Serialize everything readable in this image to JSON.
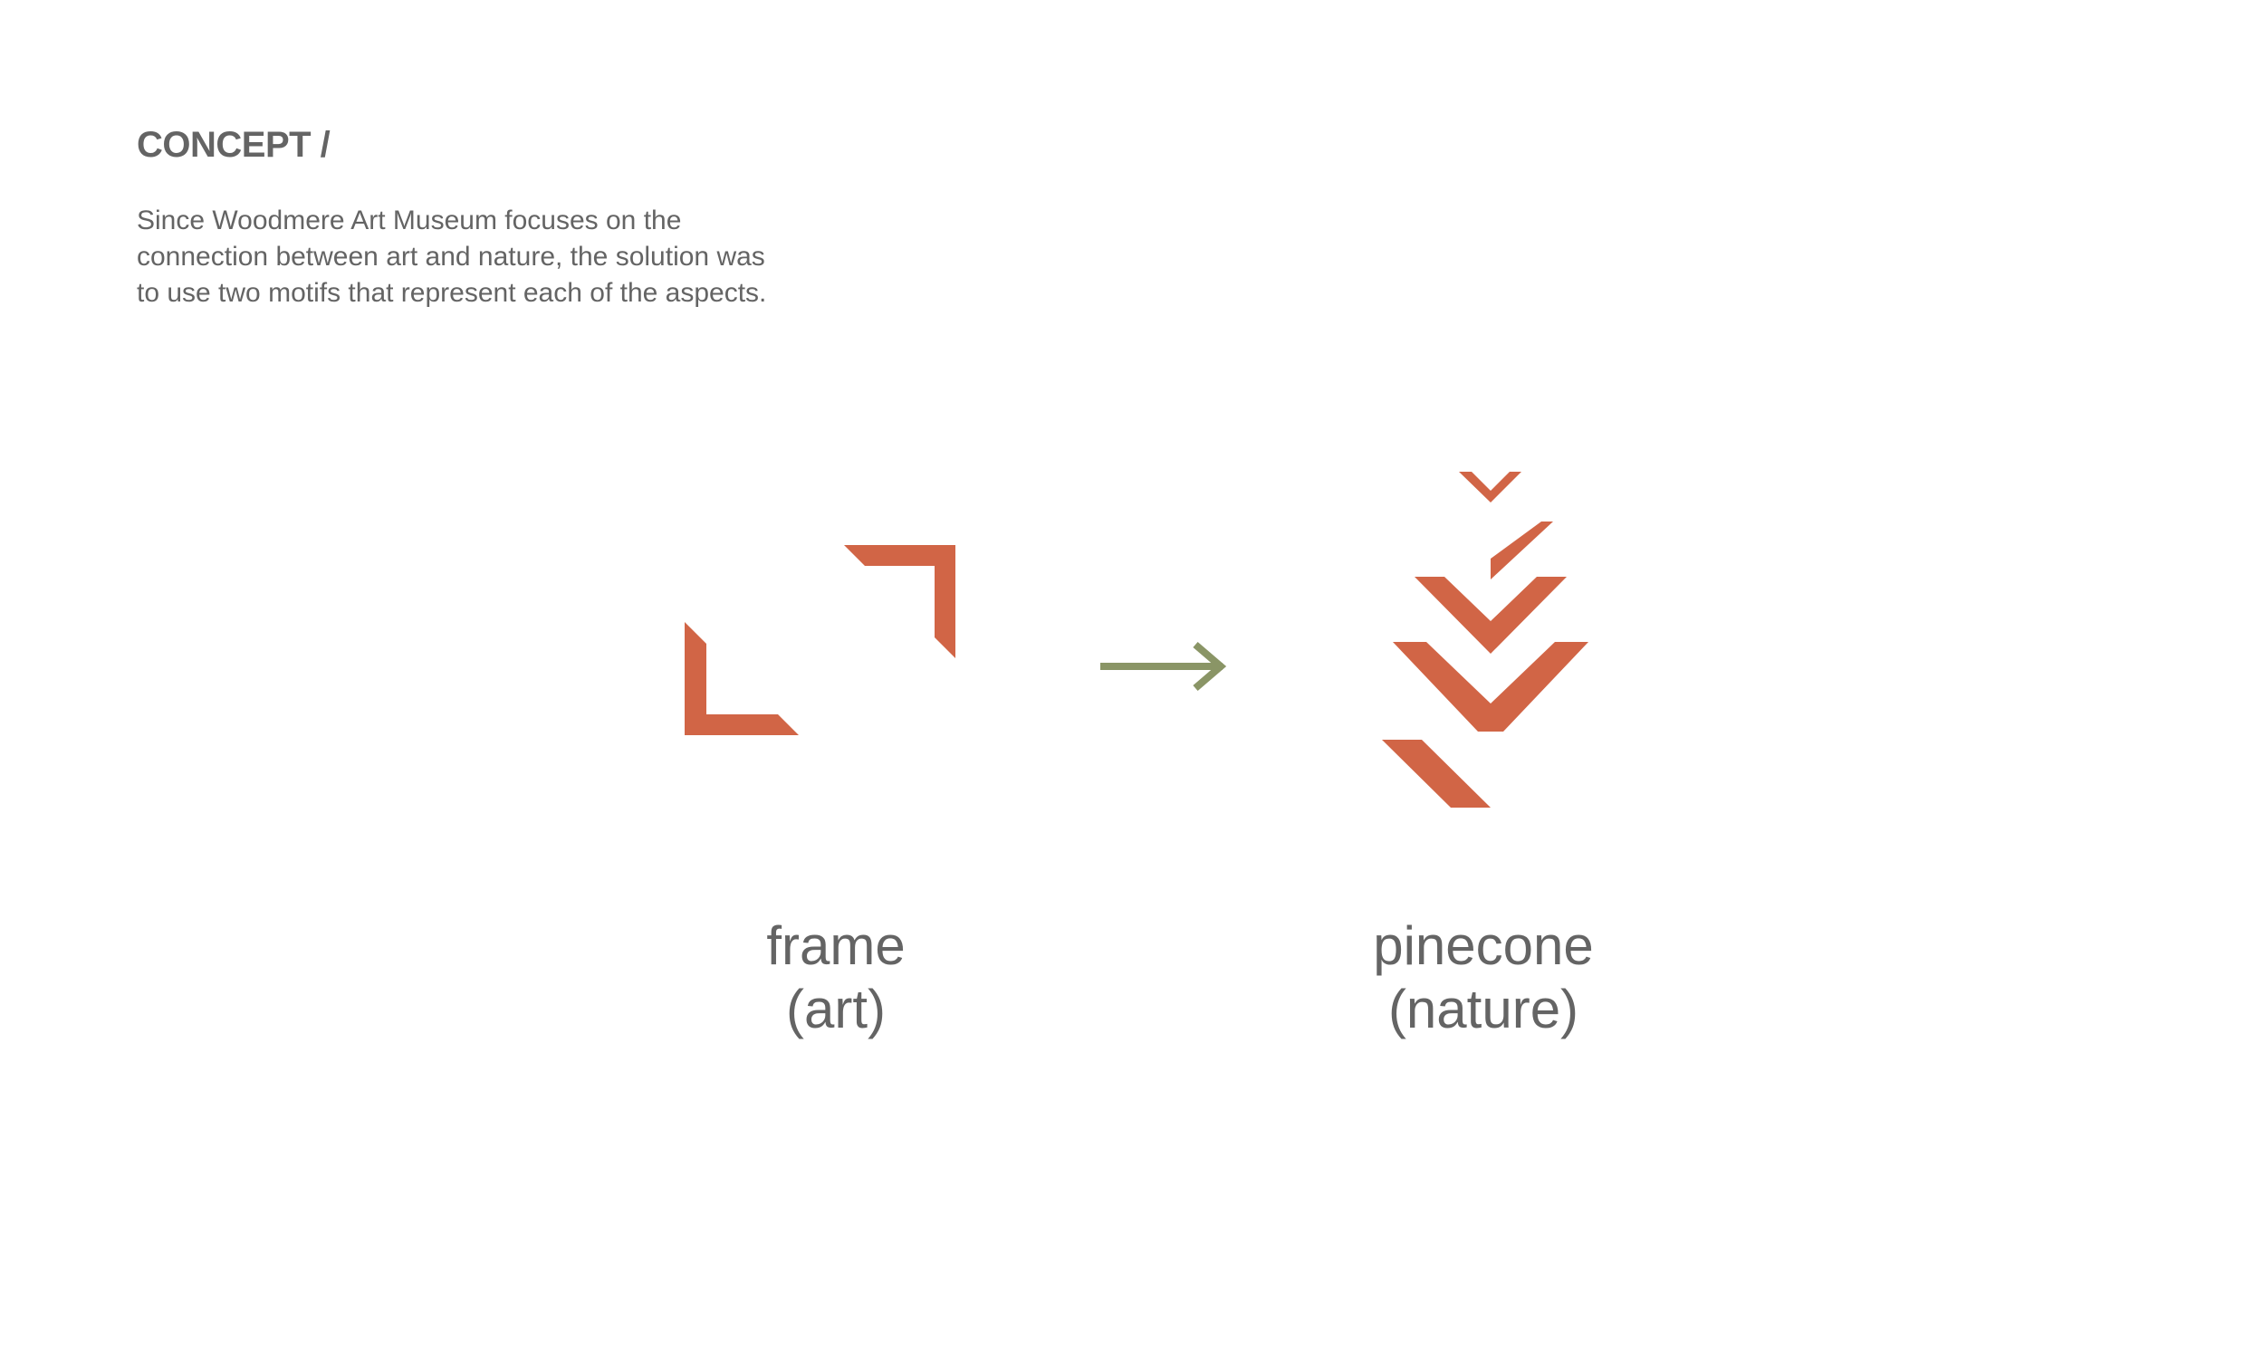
{
  "heading": "CONCEPT /",
  "description": {
    "lines": [
      "Since Woodmere Art Museum focuses on the",
      "connection between art and nature, the solution was",
      "to use two motifs that represent each of the aspects."
    ]
  },
  "motifs": {
    "frame": {
      "label_line1": "frame",
      "label_line2": "(art)",
      "icon": "frame-corners-icon"
    },
    "arrow": {
      "icon": "right-arrow-icon"
    },
    "pinecone": {
      "label_line1": "pinecone",
      "label_line2": "(nature)",
      "icon": "pinecone-chevrons-icon"
    }
  },
  "colors": {
    "accent": "#D16546",
    "arrow": "#8A9566",
    "text": "#646464",
    "background": "#FFFFFF"
  }
}
